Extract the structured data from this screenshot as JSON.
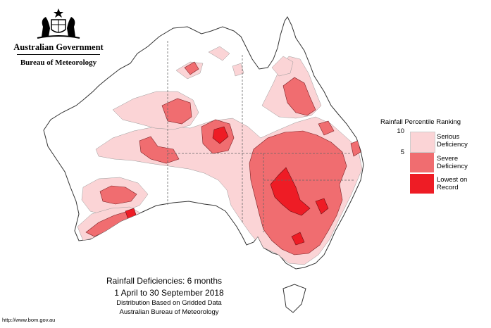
{
  "header": {
    "government": "Australian Government",
    "agency": "Bureau of Meteorology"
  },
  "legend": {
    "title": "Rainfall Percentile Ranking",
    "ticks": [
      "10",
      "5"
    ],
    "items": [
      {
        "label_line1": "Serious",
        "label_line2": "Deficiency",
        "color": "#fbd4d6"
      },
      {
        "label_line1": "Severe",
        "label_line2": "Deficiency",
        "color": "#f06d70"
      },
      {
        "label_line1": "Lowest on",
        "label_line2": "Record",
        "color": "#ee1c25"
      }
    ]
  },
  "caption": {
    "title": "Rainfall Deficiencies: 6 months",
    "period": "1 April to 30 September 2018",
    "line1": "Distribution Based on Gridded Data",
    "line2": "Australian Bureau of Meteorology"
  },
  "footer": {
    "url": "http://www.bom.gov.au"
  }
}
